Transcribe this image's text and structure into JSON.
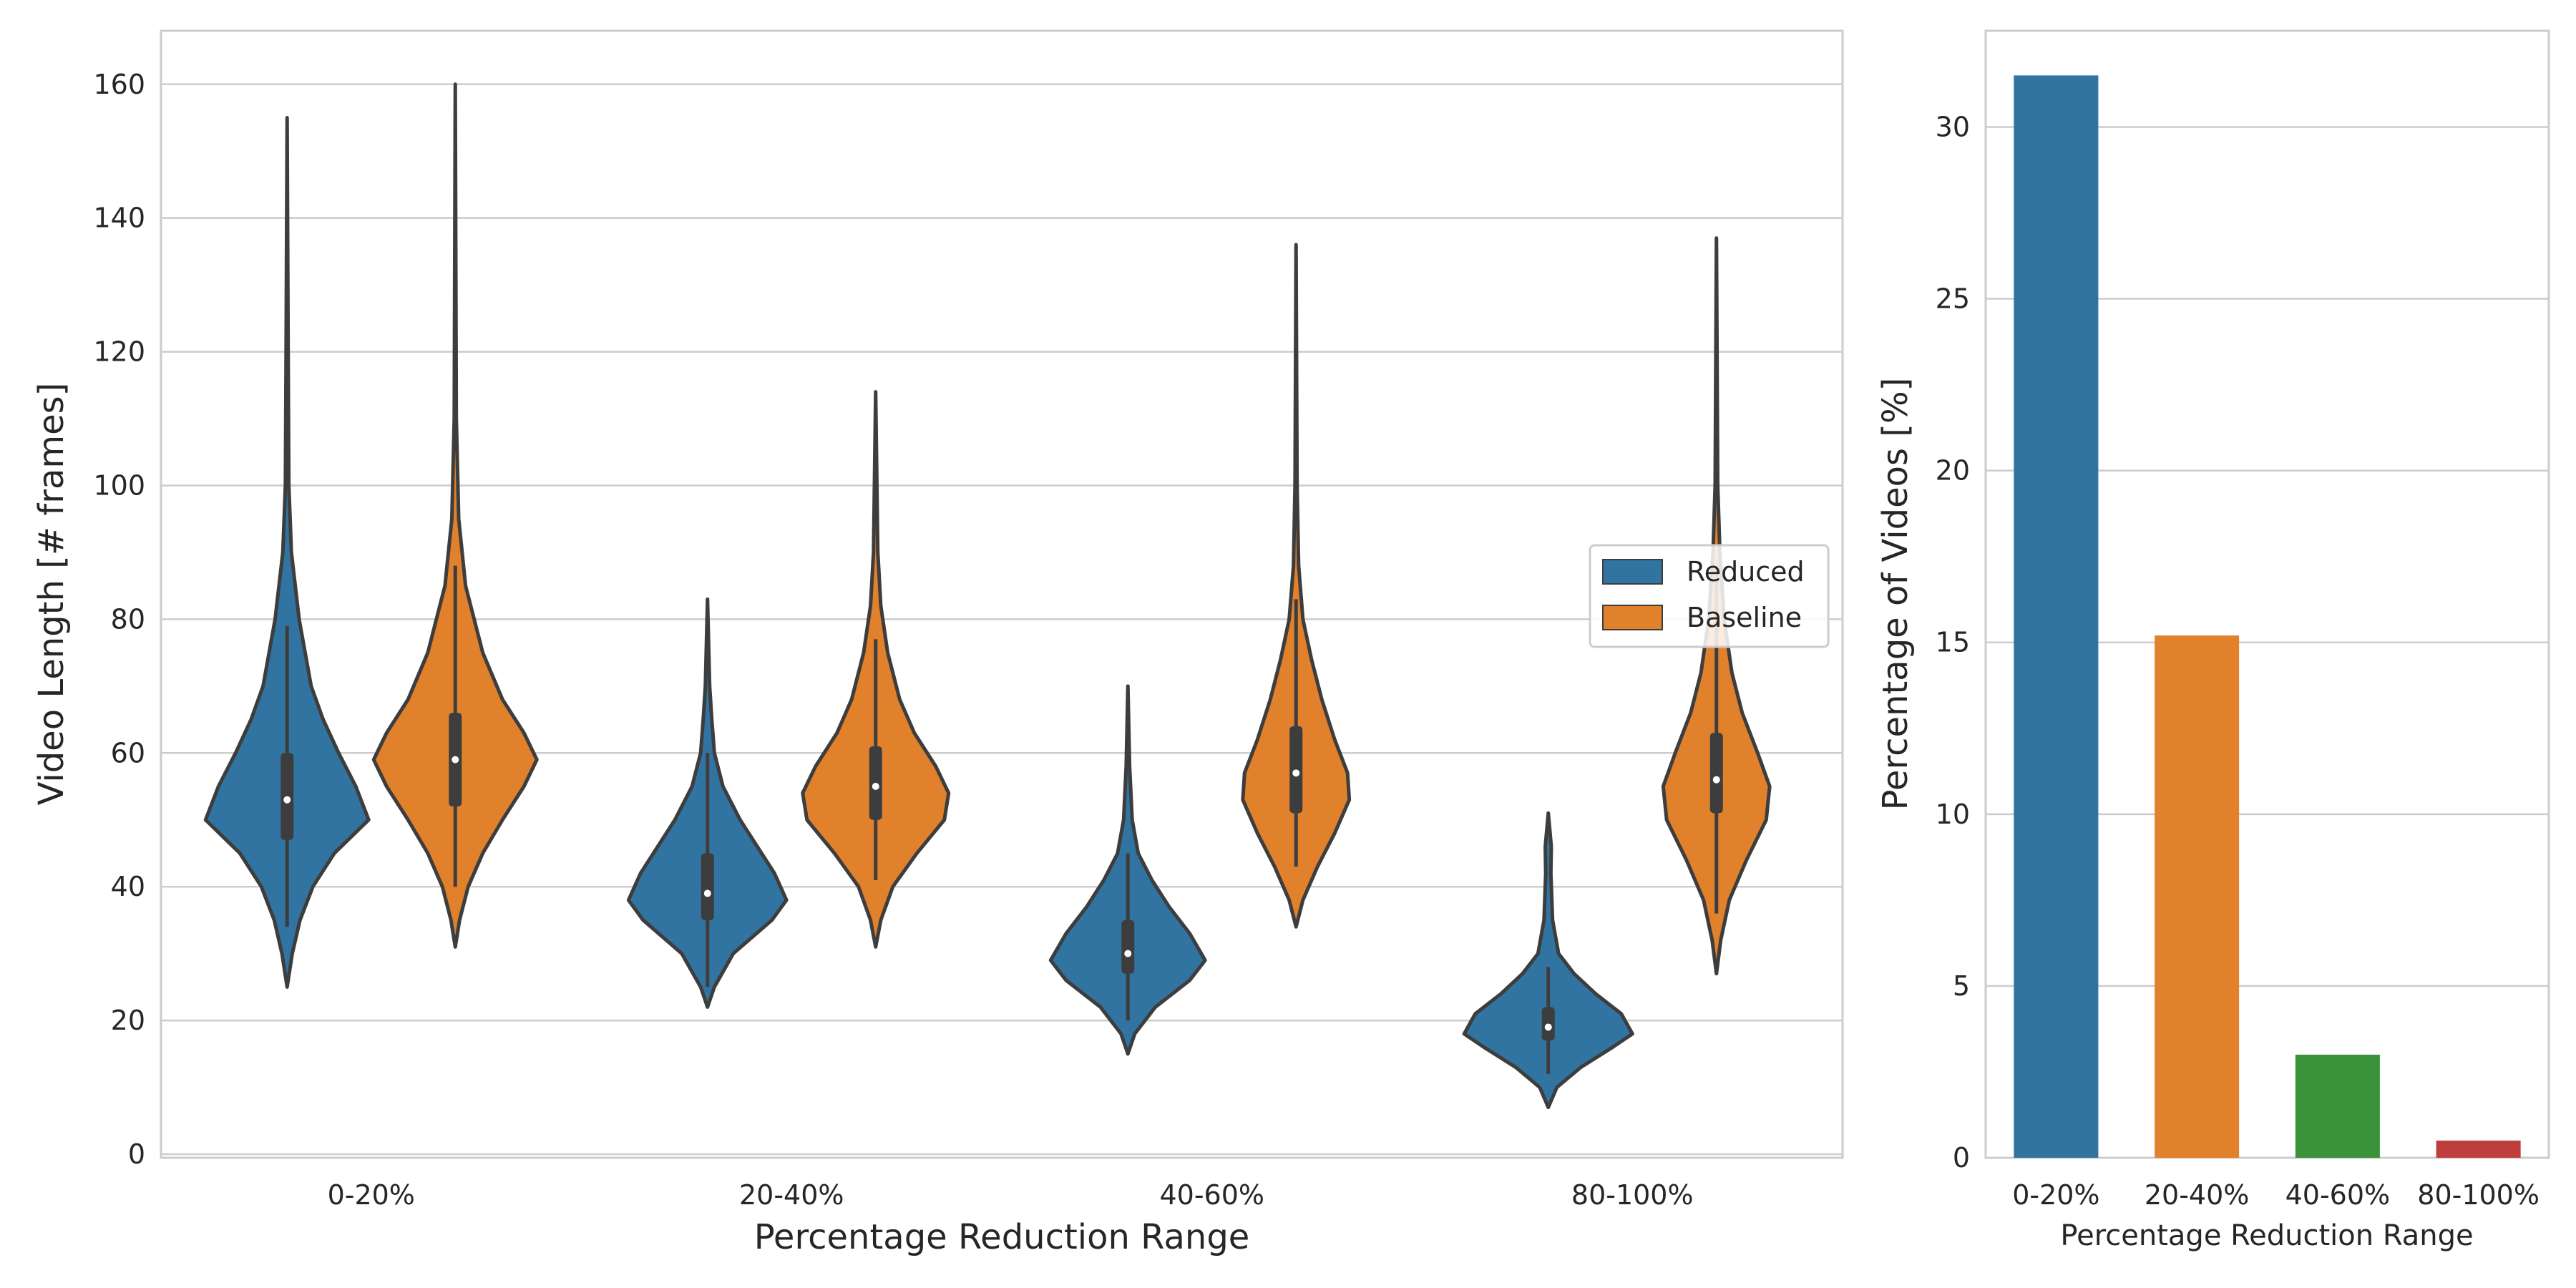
{
  "chart_data": [
    {
      "type": "violin",
      "xlabel": "Percentage Reduction Range",
      "ylabel": "Video Length [# frames]",
      "ylim": [
        0,
        168
      ],
      "yticks": [
        0,
        20,
        40,
        60,
        80,
        100,
        120,
        140,
        160
      ],
      "categories": [
        "0-20%",
        "20-40%",
        "40-60%",
        "80-100%"
      ],
      "grid": true,
      "legend_position": "center-right",
      "series": [
        {
          "name": "Reduced",
          "color": "#3274a1",
          "violins": [
            {
              "min": 25,
              "q1": 47,
              "median": 53,
              "q3": 60,
              "max": 155,
              "whisker_low": 34,
              "whisker_high": 79,
              "profile": [
                [
                  25,
                  0.0
                ],
                [
                  30,
                  0.06
                ],
                [
                  35,
                  0.15
                ],
                [
                  40,
                  0.3
                ],
                [
                  45,
                  0.55
                ],
                [
                  50,
                  0.95
                ],
                [
                  55,
                  0.8
                ],
                [
                  60,
                  0.6
                ],
                [
                  65,
                  0.42
                ],
                [
                  70,
                  0.28
                ],
                [
                  80,
                  0.14
                ],
                [
                  90,
                  0.05
                ],
                [
                  100,
                  0.02
                ],
                [
                  120,
                  0.012
                ],
                [
                  155,
                  0.0
                ]
              ]
            },
            {
              "min": 22,
              "q1": 35,
              "median": 39,
              "q3": 45,
              "max": 83,
              "whisker_low": 25,
              "whisker_high": 60,
              "profile": [
                [
                  22,
                  0.0
                ],
                [
                  25,
                  0.08
                ],
                [
                  30,
                  0.3
                ],
                [
                  35,
                  0.75
                ],
                [
                  38,
                  0.92
                ],
                [
                  42,
                  0.78
                ],
                [
                  46,
                  0.58
                ],
                [
                  50,
                  0.38
                ],
                [
                  55,
                  0.18
                ],
                [
                  60,
                  0.08
                ],
                [
                  65,
                  0.05
                ],
                [
                  70,
                  0.025
                ],
                [
                  83,
                  0.0
                ]
              ]
            },
            {
              "min": 15,
              "q1": 27,
              "median": 30,
              "q3": 35,
              "max": 70,
              "whisker_low": 20,
              "whisker_high": 45,
              "profile": [
                [
                  15,
                  0.0
                ],
                [
                  18,
                  0.08
                ],
                [
                  22,
                  0.32
                ],
                [
                  26,
                  0.72
                ],
                [
                  29,
                  0.9
                ],
                [
                  33,
                  0.72
                ],
                [
                  37,
                  0.48
                ],
                [
                  41,
                  0.28
                ],
                [
                  45,
                  0.12
                ],
                [
                  50,
                  0.05
                ],
                [
                  58,
                  0.02
                ],
                [
                  70,
                  0.0
                ]
              ]
            },
            {
              "min": 7,
              "q1": 17,
              "median": 19,
              "q3": 22,
              "max": 51,
              "whisker_low": 12,
              "whisker_high": 28,
              "profile": [
                [
                  7,
                  0.0
                ],
                [
                  10,
                  0.1
                ],
                [
                  13,
                  0.38
                ],
                [
                  16,
                  0.75
                ],
                [
                  18,
                  0.98
                ],
                [
                  21,
                  0.85
                ],
                [
                  24,
                  0.55
                ],
                [
                  27,
                  0.3
                ],
                [
                  30,
                  0.12
                ],
                [
                  35,
                  0.05
                ],
                [
                  42,
                  0.03
                ],
                [
                  46,
                  0.035
                ],
                [
                  51,
                  0.0
                ]
              ]
            }
          ]
        },
        {
          "name": "Baseline",
          "color": "#e1812c",
          "violins": [
            {
              "min": 31,
              "q1": 52,
              "median": 59,
              "q3": 66,
              "max": 160,
              "whisker_low": 40,
              "whisker_high": 88,
              "profile": [
                [
                  31,
                  0.0
                ],
                [
                  35,
                  0.05
                ],
                [
                  40,
                  0.15
                ],
                [
                  45,
                  0.32
                ],
                [
                  50,
                  0.55
                ],
                [
                  55,
                  0.8
                ],
                [
                  59,
                  0.95
                ],
                [
                  63,
                  0.8
                ],
                [
                  68,
                  0.55
                ],
                [
                  75,
                  0.32
                ],
                [
                  85,
                  0.12
                ],
                [
                  95,
                  0.04
                ],
                [
                  110,
                  0.012
                ],
                [
                  160,
                  0.0
                ]
              ]
            },
            {
              "min": 31,
              "q1": 50,
              "median": 55,
              "q3": 61,
              "max": 114,
              "whisker_low": 41,
              "whisker_high": 77,
              "profile": [
                [
                  31,
                  0.0
                ],
                [
                  35,
                  0.06
                ],
                [
                  40,
                  0.2
                ],
                [
                  45,
                  0.48
                ],
                [
                  50,
                  0.8
                ],
                [
                  54,
                  0.85
                ],
                [
                  58,
                  0.7
                ],
                [
                  63,
                  0.45
                ],
                [
                  68,
                  0.28
                ],
                [
                  75,
                  0.14
                ],
                [
                  82,
                  0.06
                ],
                [
                  90,
                  0.025
                ],
                [
                  114,
                  0.0
                ]
              ]
            },
            {
              "min": 34,
              "q1": 51,
              "median": 57,
              "q3": 64,
              "max": 136,
              "whisker_low": 43,
              "whisker_high": 83,
              "profile": [
                [
                  34,
                  0.0
                ],
                [
                  38,
                  0.08
                ],
                [
                  43,
                  0.25
                ],
                [
                  48,
                  0.45
                ],
                [
                  53,
                  0.62
                ],
                [
                  57,
                  0.6
                ],
                [
                  62,
                  0.45
                ],
                [
                  68,
                  0.3
                ],
                [
                  74,
                  0.18
                ],
                [
                  80,
                  0.08
                ],
                [
                  88,
                  0.03
                ],
                [
                  100,
                  0.012
                ],
                [
                  136,
                  0.0
                ]
              ]
            },
            {
              "min": 27,
              "q1": 51,
              "median": 56,
              "q3": 63,
              "max": 137,
              "whisker_low": 36,
              "whisker_high": 88,
              "profile": [
                [
                  27,
                  0.0
                ],
                [
                  32,
                  0.05
                ],
                [
                  38,
                  0.15
                ],
                [
                  44,
                  0.35
                ],
                [
                  50,
                  0.58
                ],
                [
                  55,
                  0.62
                ],
                [
                  60,
                  0.48
                ],
                [
                  66,
                  0.3
                ],
                [
                  72,
                  0.18
                ],
                [
                  80,
                  0.09
                ],
                [
                  90,
                  0.04
                ],
                [
                  100,
                  0.015
                ],
                [
                  137,
                  0.0
                ]
              ]
            }
          ]
        }
      ]
    },
    {
      "type": "bar",
      "xlabel": "Percentage Reduction Range",
      "ylabel": "Percentage of Videos [%]",
      "ylim": [
        0,
        32.8
      ],
      "yticks": [
        0,
        5,
        10,
        15,
        20,
        25,
        30
      ],
      "categories": [
        "0-20%",
        "20-40%",
        "40-60%",
        "80-100%"
      ],
      "values": [
        31.5,
        15.2,
        3.0,
        0.5
      ],
      "colors": [
        "#3274a1",
        "#e1812c",
        "#3a923a",
        "#c03d3e"
      ],
      "grid": true
    }
  ]
}
